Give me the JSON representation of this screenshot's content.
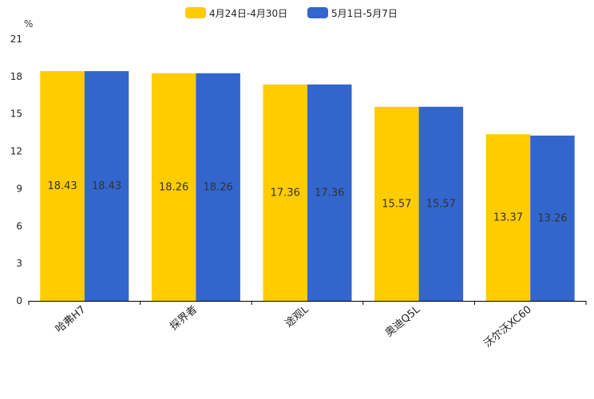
{
  "chart_data": {
    "type": "bar",
    "title": "",
    "ylabel": "%",
    "xlabel": "",
    "ylim": [
      0,
      21
    ],
    "yticks": [
      0,
      3,
      6,
      9,
      12,
      15,
      18,
      21
    ],
    "grid": false,
    "legend_position": "top-center",
    "categories": [
      "哈弗H7",
      "探界者",
      "途观L",
      "奥迪Q5L",
      "沃尔沃XC60"
    ],
    "series": [
      {
        "name": "4月24日-4月30日",
        "color": "#ffcc00",
        "values": [
          18.43,
          18.26,
          17.36,
          15.57,
          13.37
        ]
      },
      {
        "name": "5月1日-5月7日",
        "color": "#3366cc",
        "values": [
          18.43,
          18.26,
          17.36,
          15.57,
          13.26
        ]
      }
    ]
  }
}
